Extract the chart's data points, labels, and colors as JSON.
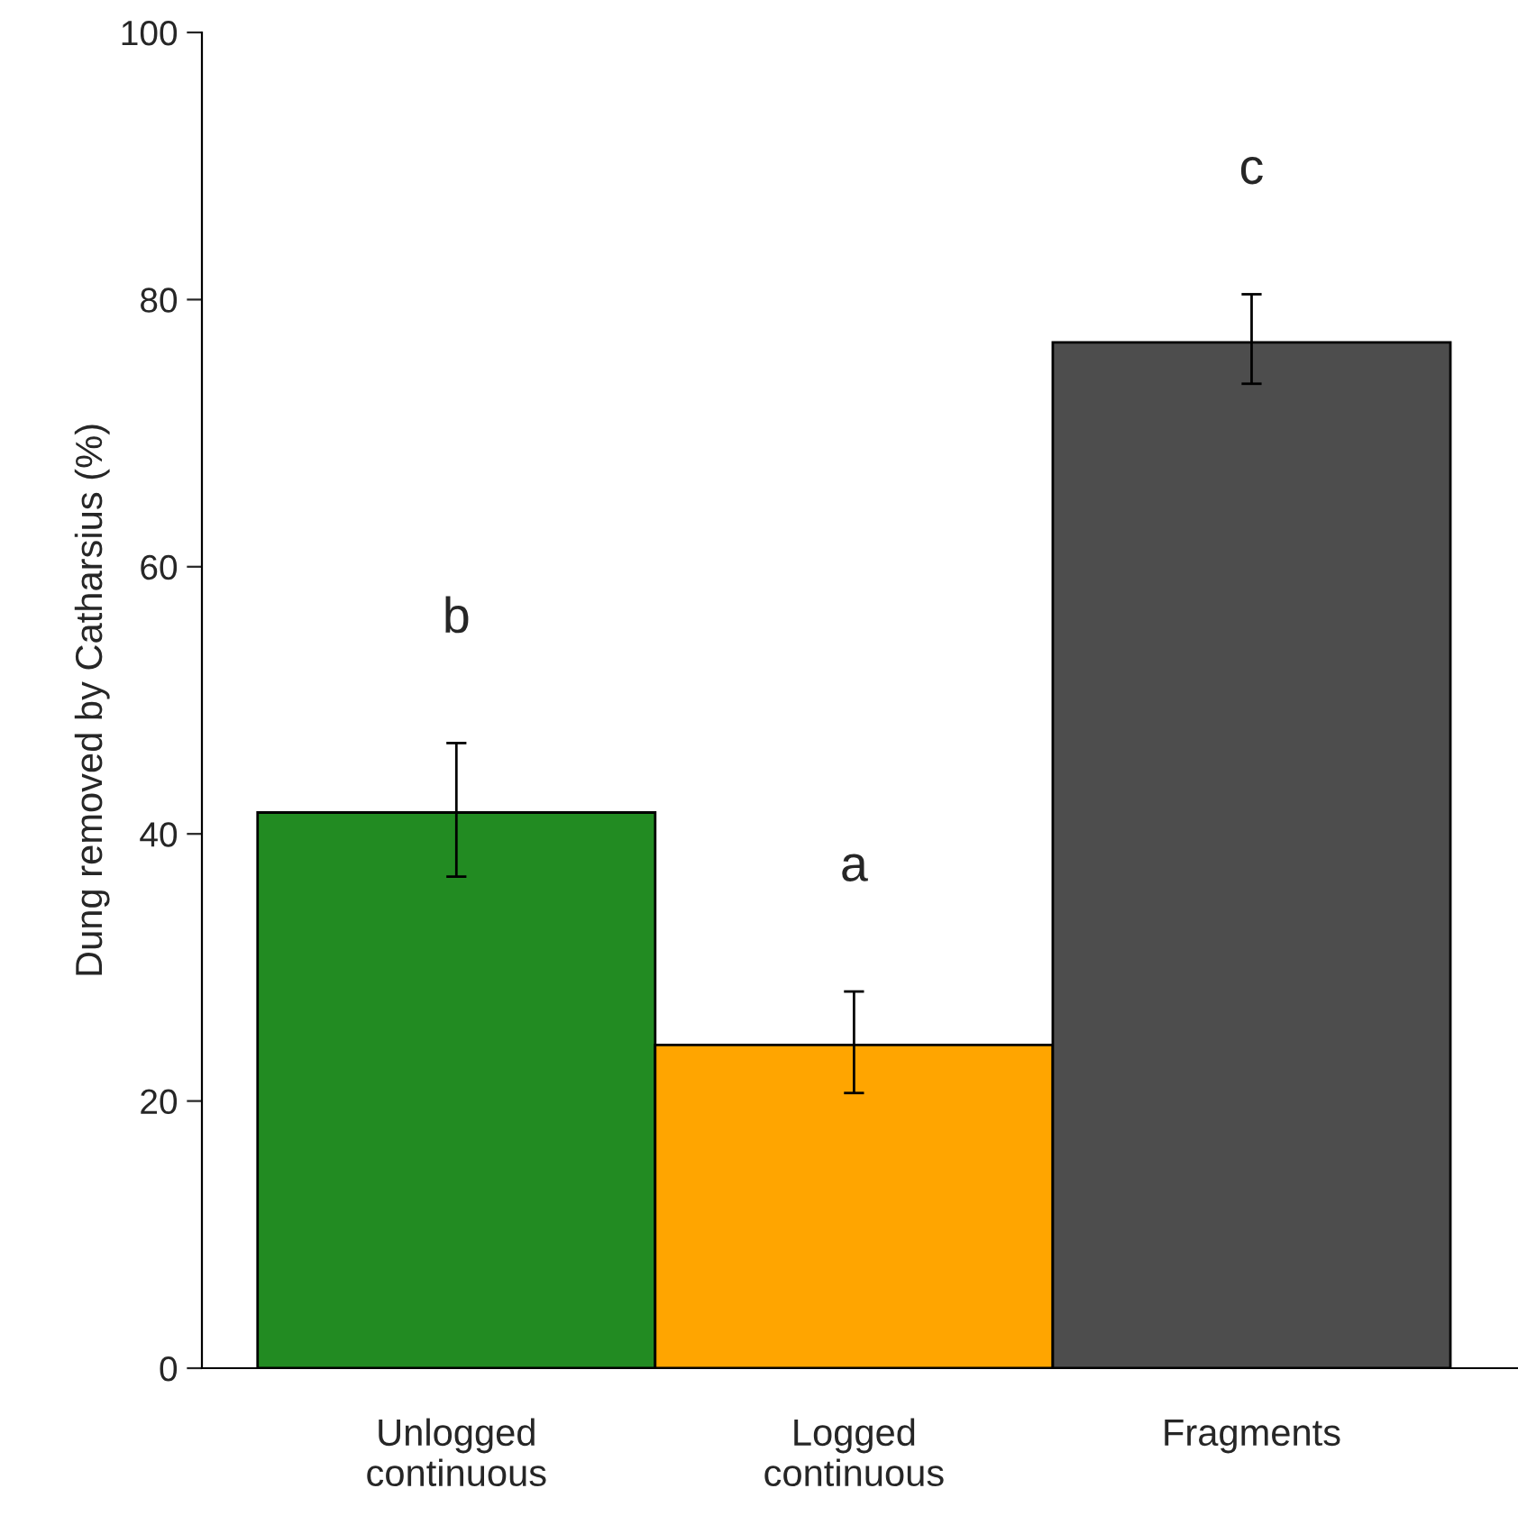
{
  "chart_data": {
    "type": "bar",
    "ylabel": "Dung removed by Catharsius (%)",
    "categories": [
      "Unlogged\ncontinuous",
      "Logged\ncontinuous",
      "Fragments"
    ],
    "values": [
      41.6,
      24.2,
      76.8
    ],
    "colors": [
      "#228b22",
      "#ffa500",
      "#4d4d4d"
    ],
    "errors": [
      [
        36.8,
        46.8
      ],
      [
        20.6,
        28.2
      ],
      [
        73.7,
        80.4
      ]
    ],
    "ylim": [
      0,
      100
    ],
    "yticks": [
      0,
      20,
      40,
      60,
      80,
      100
    ],
    "annotations": [
      "b",
      "a",
      "c"
    ],
    "grid": false,
    "legend": false
  }
}
